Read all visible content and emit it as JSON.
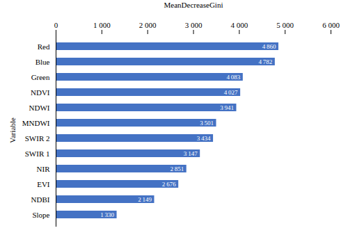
{
  "chart_data": {
    "type": "bar",
    "orientation": "horizontal",
    "categories": [
      "Red",
      "Blue",
      "Green",
      "NDVI",
      "NDWI",
      "MNDWI",
      "SWIR 2",
      "SWIR 1",
      "NIR",
      "EVI",
      "NDBI",
      "Slope"
    ],
    "values": [
      4860,
      4782,
      4083,
      4027,
      3941,
      3501,
      3434,
      3147,
      2851,
      2676,
      2149,
      1330
    ],
    "value_labels": [
      "4 860",
      "4 782",
      "4 083",
      "4 027",
      "3 941",
      "3 501",
      "3 434",
      "3 147",
      "2 851",
      "2 676",
      "2 149",
      "1 330"
    ],
    "data_labels": true,
    "color": "#4472C4",
    "xlabel": "MeanDecreaseGini",
    "ylabel": "Variable",
    "xlim": [
      0,
      6000
    ],
    "xticks": [
      0,
      {
        "value": 1000,
        "label": "1 000"
      },
      {
        "value": 2000,
        "label": "2 000"
      },
      {
        "value": 3000,
        "label": "3 000"
      },
      {
        "value": 4000,
        "label": "4 000"
      },
      {
        "value": 5000,
        "label": "5 000"
      },
      {
        "value": 6000,
        "label": "6 000"
      }
    ],
    "grid": false
  }
}
